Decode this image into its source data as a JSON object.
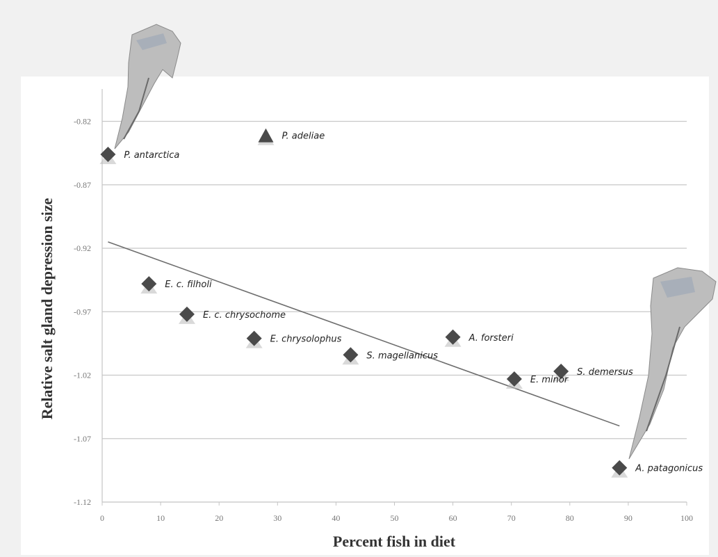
{
  "chart_data": {
    "type": "scatter",
    "title": "",
    "xlabel": "Percent fish in diet",
    "ylabel": "Relative salt gland depression size",
    "xlim": [
      0,
      100
    ],
    "ylim": [
      -1.12,
      -0.8
    ],
    "xticks": [
      "0",
      "10",
      "20",
      "30",
      "40",
      "50",
      "60",
      "70",
      "80",
      "90",
      "100"
    ],
    "yticks": [
      "-0.82",
      "-0.87",
      "-0.92",
      "-0.97",
      "-1.02",
      "-1.07",
      "-1.12"
    ],
    "ytick_values": [
      -0.82,
      -0.87,
      -0.92,
      -0.97,
      -1.02,
      -1.07,
      -1.12
    ],
    "grid": "horizontal",
    "points": [
      {
        "label": "P. antarctica",
        "x": 1,
        "y": -0.846,
        "marker": "diamond"
      },
      {
        "label": "P. adeliae",
        "x": 28,
        "y": -0.831,
        "marker": "triangle"
      },
      {
        "label": "E. c. filholi",
        "x": 8,
        "y": -0.948,
        "marker": "diamond"
      },
      {
        "label": "E. c. chrysochome",
        "x": 14.5,
        "y": -0.972,
        "marker": "diamond"
      },
      {
        "label": "E. chrysolophus",
        "x": 26,
        "y": -0.991,
        "marker": "diamond"
      },
      {
        "label": "S. magellanicus",
        "x": 42.5,
        "y": -1.004,
        "marker": "diamond"
      },
      {
        "label": "A. forsteri",
        "x": 60,
        "y": -0.99,
        "marker": "diamond"
      },
      {
        "label": "E. minor",
        "x": 70.5,
        "y": -1.023,
        "marker": "diamond"
      },
      {
        "label": "S. demersus",
        "x": 78.5,
        "y": -1.017,
        "marker": "diamond"
      },
      {
        "label": "A. patagonicus",
        "x": 88.5,
        "y": -1.093,
        "marker": "diamond"
      }
    ],
    "trendline": {
      "x": [
        1,
        88.5
      ],
      "y": [
        -0.915,
        -1.06
      ]
    },
    "colors": {
      "marker": "#4a4a4a",
      "grid": "#c8c8c8",
      "trendline": "#6e6e6e"
    }
  }
}
